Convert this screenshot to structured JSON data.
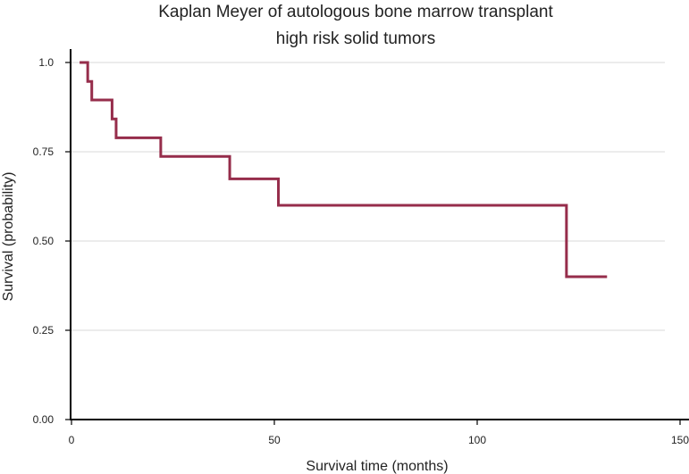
{
  "chart_data": {
    "type": "line",
    "step": true,
    "title": "Kaplan Meyer of autologous bone marrow transplant",
    "subtitle": "high risk solid tumors",
    "xlabel": "Survival time (months)",
    "ylabel": "Survival (probability)",
    "xlim": [
      0,
      150
    ],
    "ylim": [
      0,
      1
    ],
    "xticks": [
      "0",
      "50",
      "100",
      "150"
    ],
    "yticks": [
      "0.00",
      "0.25",
      "0.50",
      "0.75",
      "1.0"
    ],
    "xtick_values": [
      0,
      50,
      100,
      150
    ],
    "ytick_values": [
      0,
      0.25,
      0.5,
      0.75,
      1.0
    ],
    "grid": "horizontal",
    "series": [
      {
        "color": "#962d4b",
        "x": [
          2,
          4,
          5,
          10,
          11,
          22,
          39,
          51,
          122,
          132
        ],
        "y": [
          1.0,
          0.947,
          0.895,
          0.842,
          0.789,
          0.737,
          0.674,
          0.6,
          0.4,
          0.4
        ]
      }
    ]
  }
}
